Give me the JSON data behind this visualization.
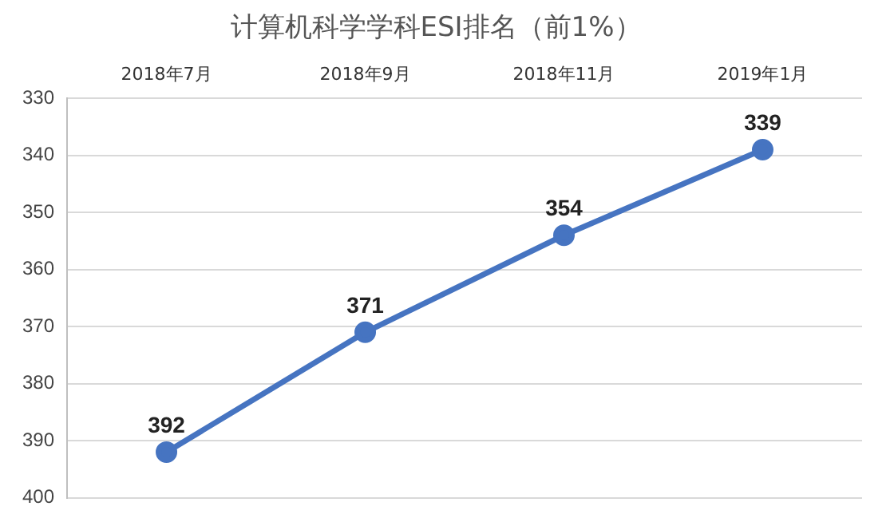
{
  "chart_data": {
    "type": "line",
    "title": "计算机科学学科ESI排名（前1%）",
    "categories": [
      "2018年7月",
      "2018年9月",
      "2018年11月",
      "2019年1月"
    ],
    "series": [
      {
        "color": "#4674c1",
        "values": [
          392,
          371,
          354,
          339
        ]
      }
    ],
    "ylim": [
      400,
      330
    ],
    "yticks": [
      330,
      340,
      350,
      360,
      370,
      380,
      390,
      400
    ],
    "grid": "y",
    "legend": false,
    "marker": "circle",
    "line_style": "solid",
    "data_labels": true
  }
}
